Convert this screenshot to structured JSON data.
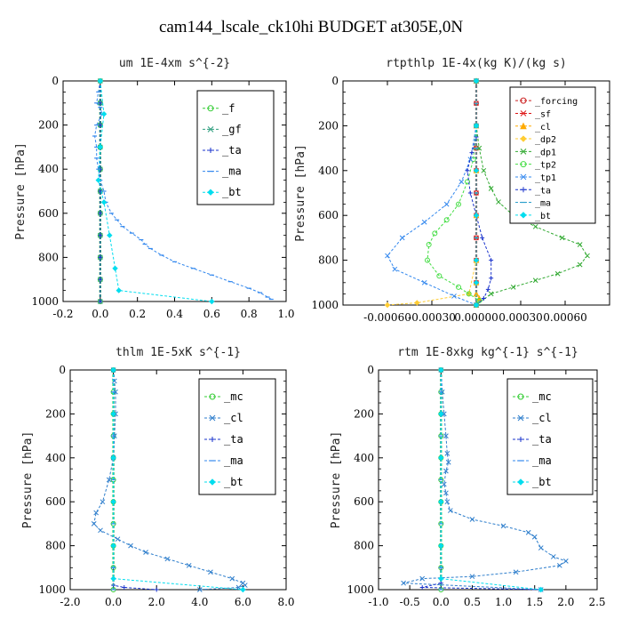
{
  "figure": {
    "title": "cam144_lscale_ck10hi  BUDGET at305E,0N"
  },
  "chart_data": [
    {
      "type": "line",
      "title": "um   1E-4xm s^{-2}",
      "ylabel": "Pressure [hPa]",
      "xlim": [
        -0.2,
        1.0
      ],
      "ylim": [
        1000,
        0
      ],
      "xticks": [
        -0.2,
        0.0,
        0.2,
        0.4,
        0.6,
        0.8,
        1.0
      ],
      "xtick_labels": [
        "-0.2",
        "0.0",
        "0.2",
        "0.4",
        "0.6",
        "0.8",
        "1.0"
      ],
      "yticks": [
        0,
        200,
        400,
        600,
        800,
        1000
      ],
      "legend_placement": "top-right",
      "series": [
        {
          "name": "_f",
          "color": "#33cc33",
          "marker": "circle",
          "x": [
            0.0,
            0.0,
            0.0,
            0.0,
            0.0,
            0.0,
            0.0,
            0.0,
            0.0,
            0.0,
            0.0
          ],
          "y": [
            0,
            100,
            200,
            300,
            400,
            500,
            600,
            700,
            800,
            900,
            1000
          ]
        },
        {
          "name": "_gf",
          "color": "#2e9e7e",
          "marker": "cross",
          "x": [
            0.0,
            0.0,
            0.0,
            0.0,
            0.0,
            0.0,
            0.0,
            0.0,
            0.0,
            0.0,
            0.0
          ],
          "y": [
            0,
            100,
            200,
            300,
            400,
            500,
            600,
            700,
            800,
            900,
            1000
          ]
        },
        {
          "name": "_ta",
          "color": "#1a33cc",
          "marker": "plus",
          "x": [
            0.0,
            0.0,
            0.0,
            0.0,
            0.0,
            0.0,
            0.0,
            0.0,
            0.0,
            0.0,
            0.0
          ],
          "y": [
            0,
            100,
            200,
            300,
            400,
            500,
            600,
            700,
            800,
            900,
            1000
          ]
        },
        {
          "name": "_ma",
          "color": "#3388ee",
          "marker": "dash",
          "x": [
            0.0,
            -0.01,
            -0.02,
            0.0,
            0.01,
            -0.02,
            -0.03,
            -0.02,
            -0.02,
            -0.01,
            0.0,
            0.02,
            0.03,
            0.06,
            0.09,
            0.12,
            0.17,
            0.22,
            0.24,
            0.27,
            0.33,
            0.4,
            0.5,
            0.6,
            0.7,
            0.8,
            0.86,
            0.9,
            0.92
          ],
          "y": [
            0,
            50,
            100,
            120,
            150,
            200,
            250,
            300,
            350,
            400,
            450,
            500,
            550,
            600,
            630,
            660,
            690,
            720,
            740,
            760,
            790,
            820,
            850,
            880,
            910,
            940,
            960,
            980,
            990
          ]
        },
        {
          "name": "_bt",
          "color": "#00ddee",
          "marker": "diamond",
          "x": [
            0.0,
            0.02,
            0.0,
            -0.01,
            0.02,
            0.05,
            0.08,
            0.1,
            0.6
          ],
          "y": [
            0,
            150,
            300,
            450,
            550,
            700,
            850,
            950,
            1000
          ]
        }
      ]
    },
    {
      "type": "line",
      "title": "rtpthlp   1E-4x(kg K)/(kg s)",
      "ylabel": "Pressure [hPa]",
      "xlim": [
        -0.0009,
        0.0009
      ],
      "ylim": [
        1000,
        0
      ],
      "xticks": [
        -0.0006,
        -0.0003,
        0.0,
        0.0003,
        0.0006
      ],
      "xtick_labels": [
        "-0.00060",
        "-0.00030",
        "0.00000",
        "0.00030",
        "0.00060"
      ],
      "yticks": [
        0,
        200,
        400,
        600,
        800,
        1000
      ],
      "legend_placement": "top-right",
      "series": [
        {
          "name": "_forcing",
          "color": "#cc2222",
          "marker": "circle",
          "x": [
            0,
            0,
            0,
            0,
            0,
            0,
            0,
            0,
            0,
            0,
            0
          ],
          "y": [
            0,
            100,
            200,
            300,
            400,
            500,
            600,
            700,
            800,
            900,
            1000
          ]
        },
        {
          "name": "_sf",
          "color": "#dd1111",
          "marker": "cross",
          "x": [
            0,
            0,
            0,
            0,
            0,
            0,
            0,
            0,
            0,
            0,
            0
          ],
          "y": [
            0,
            100,
            200,
            300,
            400,
            500,
            600,
            700,
            800,
            900,
            1000
          ]
        },
        {
          "name": "_cl",
          "color": "#ffaa00",
          "marker": "triangle",
          "x": [
            0,
            0,
            0,
            0,
            0,
            0,
            0,
            2e-05,
            0.0
          ],
          "y": [
            0,
            200,
            400,
            600,
            800,
            900,
            950,
            970,
            1000
          ]
        },
        {
          "name": "_dp2",
          "color": "#ffcc33",
          "marker": "diamond",
          "x": [
            0,
            0,
            0,
            0,
            0,
            -5e-05,
            -0.0004,
            -0.0006
          ],
          "y": [
            0,
            200,
            400,
            600,
            800,
            950,
            990,
            1000
          ]
        },
        {
          "name": "_dp1",
          "color": "#33aa33",
          "marker": "cross",
          "x": [
            0,
            0,
            2e-05,
            5e-05,
            0.0001,
            0.00015,
            0.00025,
            0.0004,
            0.00058,
            0.0007,
            0.00075,
            0.0007,
            0.00055,
            0.0004,
            0.00025,
            0.0001,
            0.0
          ],
          "y": [
            0,
            200,
            300,
            400,
            480,
            540,
            600,
            650,
            700,
            730,
            780,
            820,
            860,
            890,
            920,
            950,
            1000
          ]
        },
        {
          "name": "_tp2",
          "color": "#44dd44",
          "marker": "circle",
          "x": [
            0,
            0,
            -2e-05,
            -6e-05,
            -0.00012,
            -0.0002,
            -0.00028,
            -0.00032,
            -0.00033,
            -0.00025,
            -0.00012,
            -5e-05,
            2e-05,
            0.0
          ],
          "y": [
            0,
            200,
            350,
            450,
            550,
            620,
            680,
            730,
            800,
            870,
            920,
            950,
            980,
            1000
          ]
        },
        {
          "name": "_tp1",
          "color": "#3388ee",
          "marker": "cross",
          "x": [
            0,
            0,
            -4e-05,
            -0.0001,
            -0.0002,
            -0.00035,
            -0.0005,
            -0.0006,
            -0.00055,
            -0.00035,
            -0.00015,
            0.0
          ],
          "y": [
            0,
            200,
            350,
            450,
            550,
            630,
            700,
            780,
            840,
            900,
            960,
            1000
          ]
        },
        {
          "name": "_ta",
          "color": "#1a33cc",
          "marker": "plus",
          "x": [
            0,
            0,
            -3e-05,
            -6e-05,
            -4e-05,
            0.0,
            4e-05,
            0.0001,
            0.0001,
            8e-05,
            5e-05,
            0.0
          ],
          "y": [
            0,
            250,
            320,
            400,
            500,
            600,
            700,
            800,
            880,
            930,
            970,
            1000
          ]
        },
        {
          "name": "_ma",
          "color": "#2ea0cc",
          "marker": "dash",
          "x": [
            0,
            0,
            0,
            0,
            0,
            0,
            0,
            0,
            0,
            0,
            0
          ],
          "y": [
            0,
            100,
            200,
            300,
            400,
            500,
            600,
            700,
            800,
            900,
            1000
          ]
        },
        {
          "name": "_bt",
          "color": "#00ddee",
          "marker": "diamond",
          "x": [
            0,
            0,
            0,
            0,
            0,
            0,
            0
          ],
          "y": [
            0,
            200,
            400,
            600,
            800,
            900,
            1000
          ]
        }
      ]
    },
    {
      "type": "line",
      "title": "thlm   1E-5xK s^{-1}",
      "ylabel": "Pressure [hPa]",
      "xlim": [
        -2.0,
        8.0
      ],
      "ylim": [
        1000,
        0
      ],
      "xticks": [
        -2,
        0,
        2,
        4,
        6,
        8
      ],
      "xtick_labels": [
        "-2.0",
        "0.0",
        "2.0",
        "4.0",
        "6.0",
        "8.0"
      ],
      "yticks": [
        0,
        200,
        400,
        600,
        800,
        1000
      ],
      "legend_placement": "top-right",
      "series": [
        {
          "name": "_mc",
          "color": "#33cc33",
          "marker": "circle",
          "x": [
            0,
            0,
            0,
            0,
            0,
            0,
            0,
            0,
            0,
            0,
            0
          ],
          "y": [
            0,
            100,
            200,
            300,
            400,
            500,
            600,
            700,
            800,
            900,
            1000
          ]
        },
        {
          "name": "_cl",
          "color": "#2e7ecc",
          "marker": "cross",
          "x": [
            0.0,
            0.05,
            0.1,
            0.1,
            0.05,
            0.0,
            -0.2,
            -0.5,
            -0.8,
            -0.9,
            -0.6,
            0.2,
            0.8,
            1.5,
            2.5,
            3.5,
            4.5,
            5.5,
            6.0,
            6.1,
            5.8,
            4.0
          ],
          "y": [
            0,
            50,
            100,
            200,
            300,
            400,
            500,
            600,
            650,
            700,
            730,
            770,
            800,
            830,
            860,
            890,
            920,
            950,
            970,
            980,
            990,
            1000
          ]
        },
        {
          "name": "_ta",
          "color": "#1a33cc",
          "marker": "plus",
          "x": [
            0,
            0,
            0,
            0,
            0,
            0,
            0,
            0,
            0.5,
            2.0
          ],
          "y": [
            0,
            200,
            400,
            600,
            800,
            900,
            950,
            980,
            990,
            1000
          ]
        },
        {
          "name": "_ma",
          "color": "#3388ee",
          "marker": "dash",
          "x": [
            0,
            0,
            0,
            0,
            0,
            0,
            0,
            0,
            0,
            0,
            0
          ],
          "y": [
            0,
            100,
            200,
            300,
            400,
            500,
            600,
            700,
            800,
            900,
            1000
          ]
        },
        {
          "name": "_bt",
          "color": "#00ddee",
          "marker": "diamond",
          "x": [
            0,
            0,
            0,
            0,
            0,
            0,
            6.0
          ],
          "y": [
            0,
            200,
            400,
            600,
            800,
            950,
            1000
          ]
        }
      ]
    },
    {
      "type": "line",
      "title": "rtm   1E-8xkg kg^{-1} s^{-1}",
      "ylabel": "Pressure [hPa]",
      "xlim": [
        -1.0,
        2.5
      ],
      "ylim": [
        1000,
        0
      ],
      "xticks": [
        -1.0,
        -0.5,
        0.0,
        0.5,
        1.0,
        1.5,
        2.0,
        2.5
      ],
      "xtick_labels": [
        "-1.0",
        "-0.5",
        "0.0",
        "0.5",
        "1.0",
        "1.5",
        "2.0",
        "2.5"
      ],
      "yticks": [
        0,
        200,
        400,
        600,
        800,
        1000
      ],
      "legend_placement": "top-right",
      "series": [
        {
          "name": "_mc",
          "color": "#33cc33",
          "marker": "circle",
          "x": [
            0,
            0,
            0,
            0,
            0,
            0,
            0,
            0,
            0,
            0,
            0
          ],
          "y": [
            0,
            100,
            200,
            300,
            400,
            500,
            600,
            700,
            800,
            900,
            1000
          ]
        },
        {
          "name": "_cl",
          "color": "#2e7ecc",
          "marker": "cross",
          "x": [
            0.0,
            0.02,
            0.05,
            0.08,
            0.1,
            0.12,
            0.08,
            0.05,
            0.08,
            0.1,
            0.15,
            0.5,
            1.0,
            1.4,
            1.5,
            1.6,
            1.8,
            2.0,
            1.9,
            1.2,
            0.5,
            -0.3,
            -0.6,
            1.6
          ],
          "y": [
            0,
            100,
            200,
            300,
            380,
            420,
            460,
            520,
            560,
            600,
            640,
            680,
            710,
            740,
            760,
            810,
            850,
            870,
            890,
            920,
            940,
            950,
            970,
            1000
          ]
        },
        {
          "name": "_ta",
          "color": "#1a33cc",
          "marker": "plus",
          "x": [
            0,
            0,
            0,
            0,
            0,
            0,
            0,
            0,
            -0.3,
            1.6
          ],
          "y": [
            0,
            200,
            400,
            600,
            800,
            900,
            950,
            970,
            990,
            1000
          ]
        },
        {
          "name": "_ma",
          "color": "#3388ee",
          "marker": "dash",
          "x": [
            0,
            0,
            0,
            0,
            0,
            0,
            0,
            0,
            0,
            0,
            0
          ],
          "y": [
            0,
            100,
            200,
            300,
            400,
            500,
            600,
            700,
            800,
            900,
            1000
          ]
        },
        {
          "name": "_bt",
          "color": "#00ddee",
          "marker": "diamond",
          "x": [
            0,
            0,
            0,
            0,
            0,
            0,
            1.6
          ],
          "y": [
            0,
            200,
            400,
            600,
            800,
            950,
            1000
          ]
        }
      ]
    }
  ]
}
